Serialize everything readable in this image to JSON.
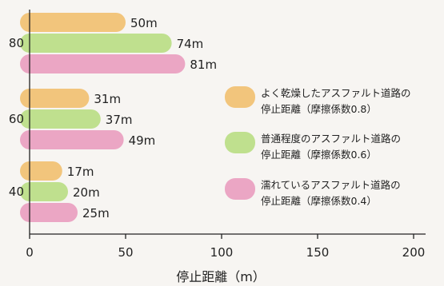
{
  "chart_data": {
    "type": "bar",
    "orientation": "horizontal",
    "categories": [
      "80",
      "60",
      "40"
    ],
    "series": [
      {
        "name_lines": [
          "よく乾燥したアスファルト道路の",
          "停止距離（摩擦係数0.8）"
        ],
        "color": "#f2c57c",
        "values": [
          50,
          31,
          17
        ],
        "labels": [
          "50m",
          "31m",
          "17m"
        ]
      },
      {
        "name_lines": [
          "普通程度のアスファルト道路の",
          "停止距離（摩擦係数0.6）"
        ],
        "color": "#bfe08e",
        "values": [
          74,
          37,
          20
        ],
        "labels": [
          "74m",
          "37m",
          "20m"
        ]
      },
      {
        "name_lines": [
          "濡れているアスファルト道路の",
          "停止距離（摩擦係数0.4）"
        ],
        "color": "#eba6c4",
        "values": [
          81,
          49,
          25
        ],
        "labels": [
          "81m",
          "49m",
          "25m"
        ]
      }
    ],
    "xlim": [
      0,
      200
    ],
    "xticks": [
      "0",
      "50",
      "100",
      "150",
      "200"
    ],
    "xlabel": "停止距離（m）",
    "ylabel": "",
    "legend_position": "right"
  }
}
